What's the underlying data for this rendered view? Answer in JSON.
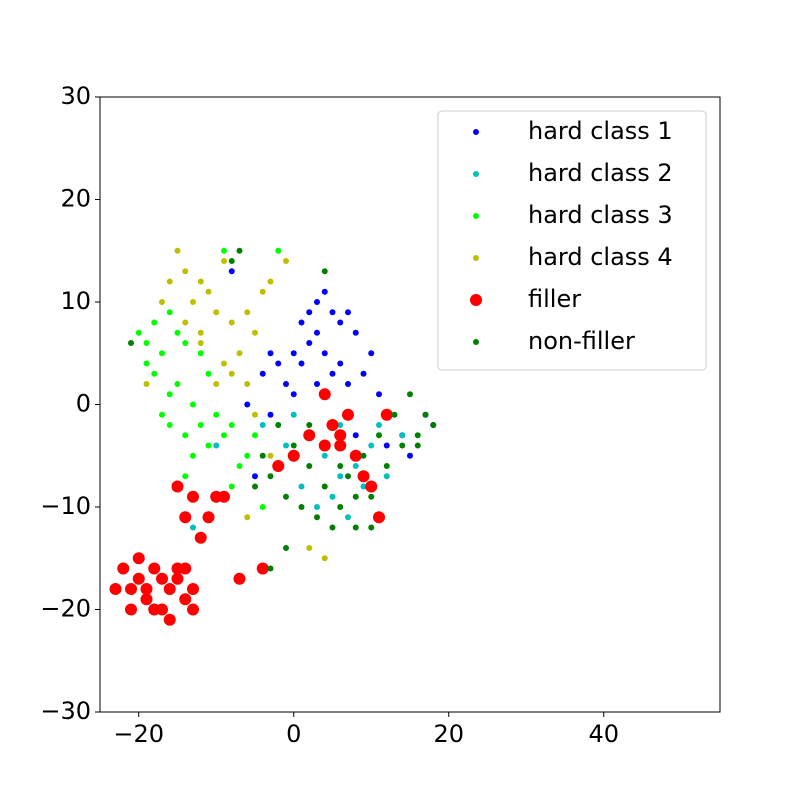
{
  "chart_data": {
    "type": "scatter",
    "xlim": [
      -25,
      55
    ],
    "ylim": [
      -30,
      30
    ],
    "xticks": [
      {
        "value": -20,
        "label": "−20"
      },
      0,
      20,
      40
    ],
    "yticks": [
      {
        "value": -30,
        "label": "−30"
      },
      {
        "value": -20,
        "label": "−20"
      },
      {
        "value": -10,
        "label": "−10"
      },
      0,
      10,
      20,
      30
    ],
    "legend": "upper right",
    "series": [
      {
        "name": "hard class 1",
        "color": "#0000ff",
        "marker_size": 3,
        "x": [
          3,
          2,
          4,
          5,
          6,
          1,
          7,
          3,
          8,
          0,
          -2,
          -4,
          -3,
          1,
          2,
          4,
          5,
          6,
          9,
          10,
          -1,
          0,
          3,
          7,
          11,
          8,
          12,
          15,
          17,
          18,
          14,
          -6,
          -3,
          -5,
          -8
        ],
        "values": [
          10,
          9,
          11,
          9,
          8,
          8,
          9,
          7,
          7,
          5,
          4,
          3,
          5,
          4,
          6,
          5,
          3,
          4,
          3,
          5,
          2,
          1,
          2,
          2,
          1,
          -3,
          -4,
          -5,
          -1,
          -2,
          -3,
          0,
          -1,
          -7,
          13
        ]
      },
      {
        "name": "hard class 2",
        "color": "#00bfbf",
        "marker_size": 3,
        "x": [
          0,
          2,
          4,
          6,
          8,
          10,
          12,
          -2,
          -4,
          1,
          3,
          5,
          7,
          9,
          11,
          -13,
          -10,
          14,
          -1,
          6
        ],
        "values": [
          -1,
          -3,
          -5,
          -2,
          -6,
          -4,
          -7,
          -6,
          -2,
          -8,
          -10,
          -9,
          -11,
          -8,
          -2,
          -12,
          -4,
          -3,
          -4,
          -7
        ]
      },
      {
        "name": "hard class 3",
        "color": "#00ff00",
        "marker_size": 3,
        "x": [
          -20,
          -19,
          -18,
          -17,
          -16,
          -15,
          -14,
          -18,
          -16,
          -15,
          -13,
          -17,
          -12,
          -11,
          -13,
          -14,
          -10,
          -9,
          -8,
          -7,
          -6,
          -5,
          -11,
          -12,
          -9,
          -2,
          -14,
          -19,
          -16,
          -8,
          -4
        ],
        "values": [
          7,
          6,
          8,
          5,
          9,
          7,
          6,
          3,
          1,
          2,
          0,
          -1,
          -2,
          -4,
          -5,
          -7,
          -1,
          -3,
          -2,
          -6,
          -5,
          -3,
          3,
          5,
          15,
          15,
          -3,
          4,
          -2,
          -8,
          -10
        ]
      },
      {
        "name": "hard class 4",
        "color": "#bfbf00",
        "marker_size": 3,
        "x": [
          -15,
          -14,
          -12,
          -13,
          -11,
          -16,
          -10,
          -8,
          -9,
          -6,
          -4,
          -3,
          -1,
          -5,
          -7,
          -9,
          -10,
          -8,
          -6,
          -12,
          -14,
          -17,
          -19,
          -5,
          -3,
          -6,
          2,
          4,
          -12
        ],
        "values": [
          15,
          13,
          12,
          10,
          11,
          12,
          9,
          8,
          14,
          9,
          11,
          12,
          14,
          7,
          5,
          4,
          2,
          3,
          2,
          7,
          8,
          10,
          2,
          -1,
          -5,
          -11,
          -14,
          -15,
          6
        ]
      },
      {
        "name": "filler",
        "color": "#ff0000",
        "marker_size": 6,
        "x": [
          -22,
          -21,
          -20,
          -19,
          -18,
          -17,
          -16,
          -15,
          -14,
          -13,
          -20,
          -18,
          -16,
          -15,
          -23,
          -21,
          -17,
          -14,
          -19,
          -13,
          -15,
          -13,
          -12,
          -11,
          -10,
          -7,
          -4,
          -2,
          0,
          2,
          4,
          5,
          6,
          7,
          8,
          9,
          10,
          11,
          12,
          4,
          -14,
          -9,
          6
        ],
        "values": [
          -16,
          -18,
          -17,
          -19,
          -16,
          -20,
          -18,
          -17,
          -19,
          -18,
          -15,
          -20,
          -21,
          -16,
          -18,
          -20,
          -17,
          -16,
          -18,
          -20,
          -8,
          -9,
          -13,
          -11,
          -9,
          -17,
          -16,
          -6,
          -5,
          -3,
          -4,
          -2,
          -3,
          -1,
          -5,
          -7,
          -8,
          -11,
          -1,
          1,
          -11,
          -9,
          -4
        ]
      },
      {
        "name": "non-filler",
        "color": "#008000",
        "marker_size": 3,
        "x": [
          -2,
          0,
          2,
          4,
          6,
          8,
          10,
          12,
          14,
          16,
          18,
          -3,
          -5,
          1,
          3,
          5,
          7,
          9,
          11,
          13,
          15,
          17,
          -1,
          -4,
          6,
          8,
          -7,
          -8,
          4,
          -21,
          -1,
          -3,
          10,
          2,
          16
        ],
        "values": [
          -2,
          -4,
          -6,
          -8,
          -10,
          -12,
          -9,
          -6,
          -4,
          -3,
          -2,
          -7,
          -8,
          -10,
          -11,
          -12,
          -7,
          -5,
          -3,
          -1,
          1,
          -1,
          -9,
          -5,
          -6,
          -9,
          15,
          14,
          13,
          6,
          -14,
          -16,
          -12,
          -2,
          -4
        ]
      }
    ]
  }
}
